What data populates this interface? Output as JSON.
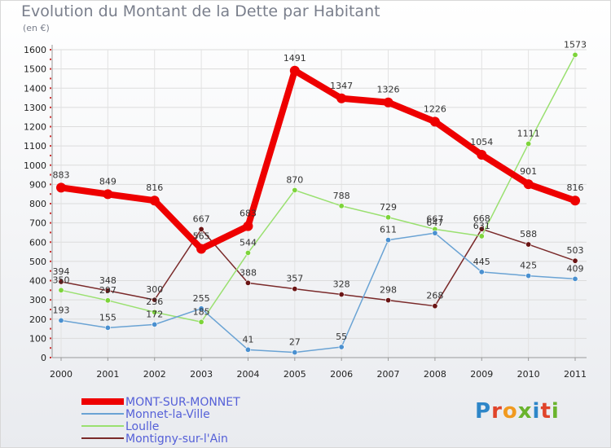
{
  "title": "Evolution du Montant de la Dette par Habitant",
  "subtitle": "(en €)",
  "logo": {
    "text": "Proxiti",
    "letters": [
      "P",
      "r",
      "o",
      "x",
      "i",
      "t",
      "i"
    ],
    "colors": [
      "#2e86c8",
      "#e0442a",
      "#f19a1f",
      "#6ab42d",
      "#2e86c8",
      "#e0442a",
      "#6ab42d"
    ]
  },
  "chart_data": {
    "type": "line",
    "x": [
      "2000",
      "2001",
      "2002",
      "2003",
      "2004",
      "2005",
      "2006",
      "2007",
      "2008",
      "2009",
      "2010",
      "2011"
    ],
    "ylim": [
      0,
      1600
    ],
    "yticks": [
      0,
      100,
      200,
      300,
      400,
      500,
      600,
      700,
      800,
      900,
      1000,
      1100,
      1200,
      1300,
      1400,
      1500,
      1600
    ],
    "grid": true,
    "legend_position": "bottom-left",
    "series": [
      {
        "name": "MONT-SUR-MONNET",
        "color": "#ee0000",
        "width": 8,
        "values": [
          883,
          849,
          816,
          565,
          683,
          1491,
          1347,
          1326,
          1226,
          1054,
          901,
          816
        ],
        "labels": [
          "883",
          "849",
          "816",
          "565",
          "683",
          "1491",
          "1347",
          "1326",
          "1226",
          "1054",
          "901",
          "816"
        ]
      },
      {
        "name": "Monnet-la-Ville",
        "color": "#6aa3d4",
        "width": 1.5,
        "marker": "#4a90d0",
        "values": [
          193,
          155,
          172,
          255,
          41,
          27,
          55,
          611,
          647,
          445,
          425,
          409
        ],
        "labels": [
          "193",
          "155",
          "172",
          "255",
          "41",
          "27",
          "55",
          "611",
          "647",
          "445",
          "425",
          "409"
        ]
      },
      {
        "name": "Loulle",
        "color": "#9ae070",
        "width": 1.5,
        "marker": "#7dd43a",
        "values": [
          350,
          297,
          236,
          185,
          544,
          870,
          788,
          729,
          667,
          631,
          1111,
          1573
        ],
        "labels": [
          "350",
          "297",
          "236",
          "185",
          "544",
          "870",
          "788",
          "729",
          "667",
          "631",
          "1111",
          "1573"
        ]
      },
      {
        "name": "Montigny-sur-l'Ain",
        "color": "#7a2a2a",
        "width": 1.5,
        "marker": "#6a1414",
        "values": [
          394,
          348,
          300,
          667,
          388,
          357,
          328,
          298,
          268,
          668,
          588,
          503
        ],
        "labels": [
          "394",
          "348",
          "300",
          "667",
          "388",
          "357",
          "328",
          "298",
          "268",
          "668",
          "588",
          "503"
        ]
      }
    ]
  }
}
